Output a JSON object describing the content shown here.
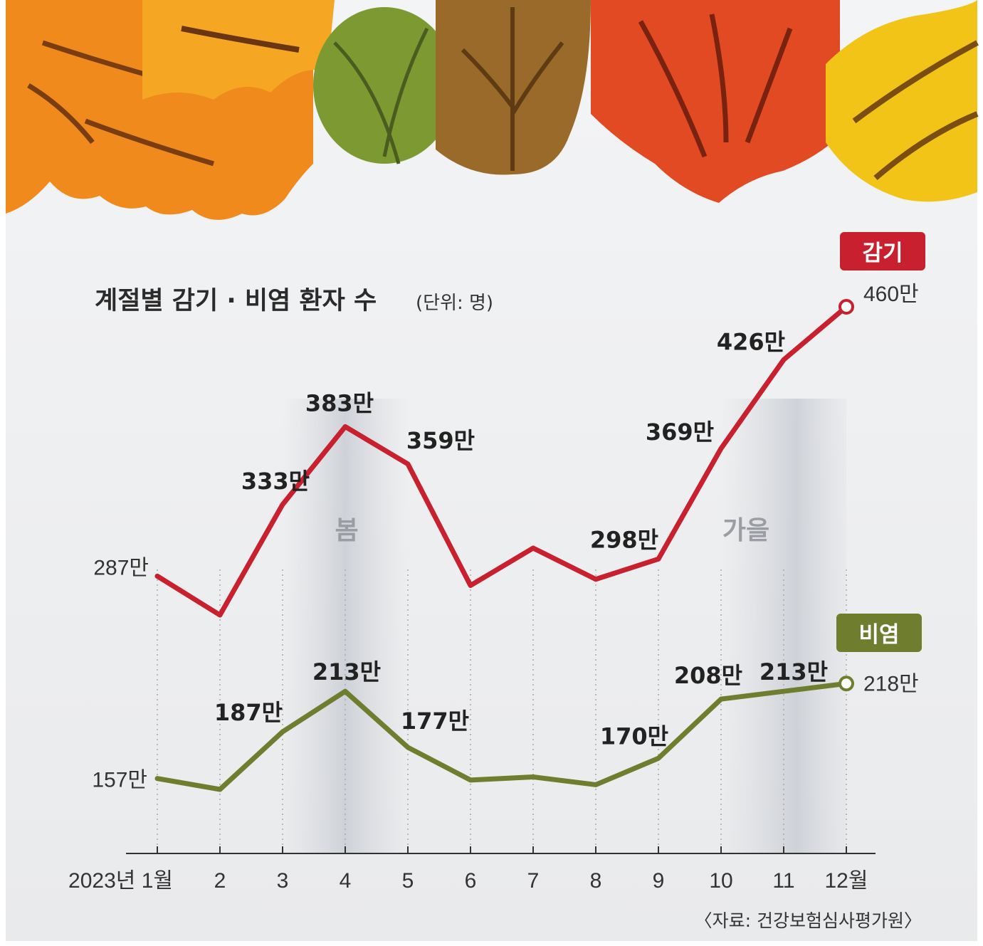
{
  "title": "계절별 감기 · 비염 환자 수",
  "unit_note": "(단위: 명)",
  "source": "〈자료: 건강보험심사평가원〉",
  "season_labels": {
    "spring": "봄",
    "autumn": "가을"
  },
  "chart_data": {
    "type": "line",
    "categories": [
      "2023년 1월",
      "2",
      "3",
      "4",
      "5",
      "6",
      "7",
      "8",
      "9",
      "10",
      "11",
      "12월"
    ],
    "series": [
      {
        "name": "감기",
        "color": "#c8202e",
        "values": [
          287,
          262,
          333,
          383,
          359,
          281,
          305,
          285,
          298,
          369,
          426,
          460
        ],
        "labels": [
          "287만",
          "",
          "333만",
          "383만",
          "359만",
          "",
          "",
          "",
          "298만",
          "369만",
          "426만",
          "460만"
        ]
      },
      {
        "name": "비염",
        "color": "#6f7d2e",
        "values": [
          157,
          150,
          187,
          213,
          177,
          156,
          158,
          153,
          170,
          208,
          213,
          218
        ],
        "labels": [
          "157만",
          "",
          "187만",
          "213만",
          "177만",
          "",
          "",
          "",
          "170만",
          "208만",
          "213만",
          "218만"
        ]
      }
    ],
    "y_unit": "만 명",
    "shaded_seasons": [
      {
        "label": "봄",
        "from_index": 2,
        "to_index": 4
      },
      {
        "label": "가을",
        "from_index": 9,
        "to_index": 11
      }
    ]
  }
}
